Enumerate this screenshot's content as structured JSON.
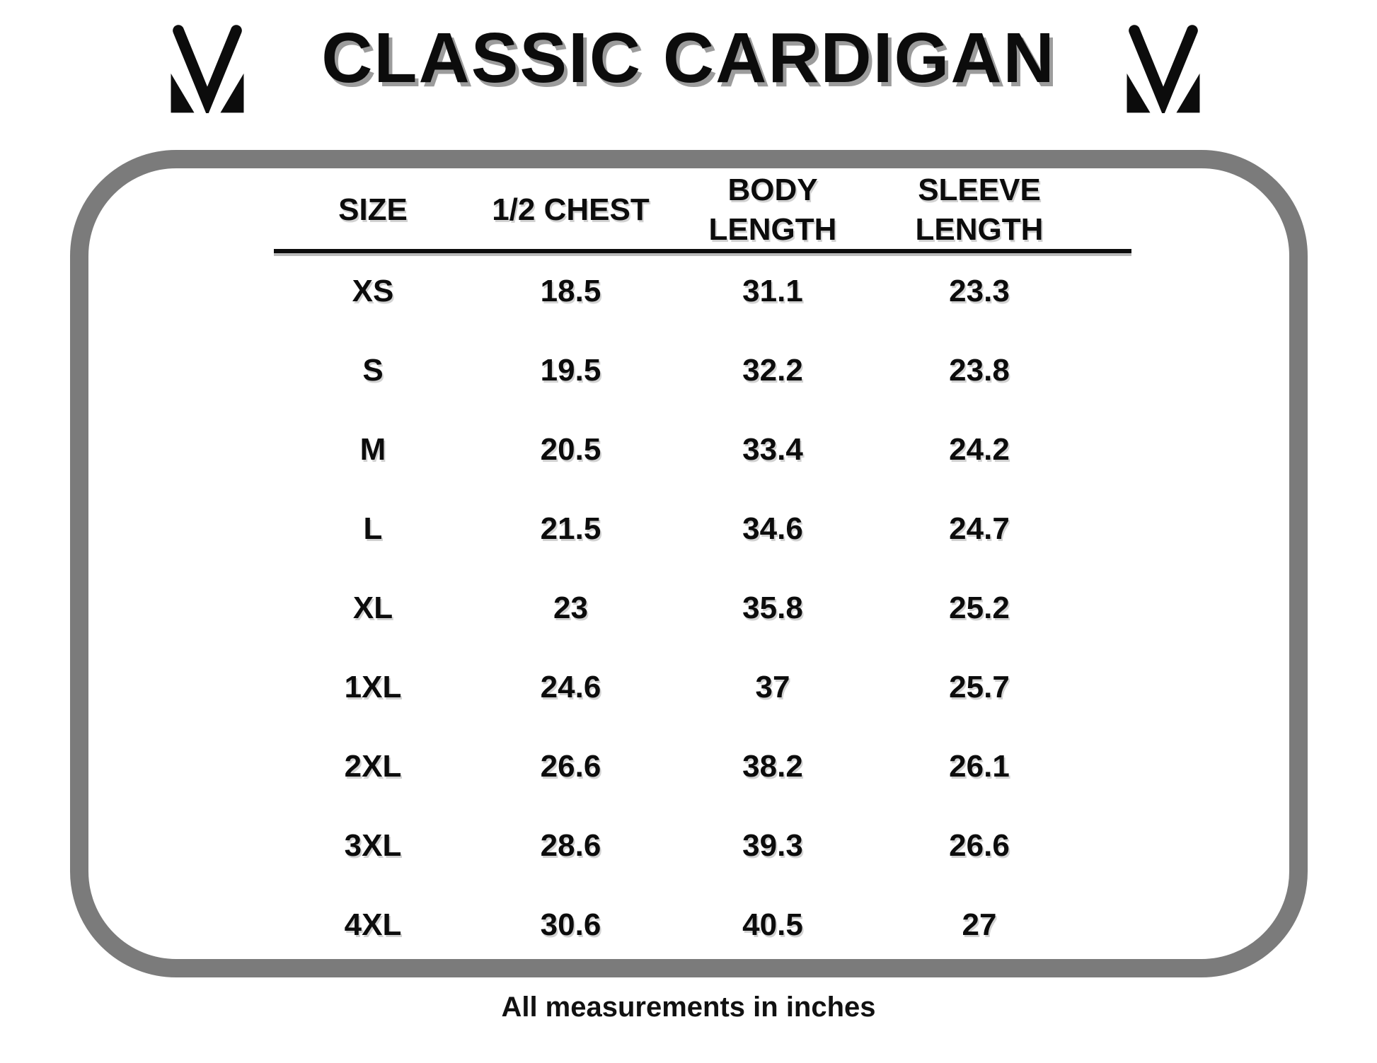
{
  "page": {
    "title": "CLASSIC CARDIGAN",
    "footer_note": "All measurements in inches"
  },
  "icons": {
    "brand_logo": "mv-monogram"
  },
  "colors": {
    "text": "#0c0c0c",
    "panel_border": "#7b7b7b",
    "title_shadow": "#9c9c9c",
    "table_text_shadow": "#d2d2d2"
  },
  "table": {
    "columns": [
      {
        "id": "size",
        "lines": [
          "SIZE"
        ]
      },
      {
        "id": "half-chest",
        "lines": [
          "1/2 CHEST"
        ]
      },
      {
        "id": "body-length",
        "lines": [
          "BODY",
          "LENGTH"
        ]
      },
      {
        "id": "sleeve-length",
        "lines": [
          "SLEEVE",
          "LENGTH"
        ]
      }
    ],
    "rows": [
      [
        "XS",
        "18.5",
        "31.1",
        "23.3"
      ],
      [
        "S",
        "19.5",
        "32.2",
        "23.8"
      ],
      [
        "M",
        "20.5",
        "33.4",
        "24.2"
      ],
      [
        "L",
        "21.5",
        "34.6",
        "24.7"
      ],
      [
        "XL",
        "23",
        "35.8",
        "25.2"
      ],
      [
        "1XL",
        "24.6",
        "37",
        "25.7"
      ],
      [
        "2XL",
        "26.6",
        "38.2",
        "26.1"
      ],
      [
        "3XL",
        "28.6",
        "39.3",
        "26.6"
      ],
      [
        "4XL",
        "30.6",
        "40.5",
        "27"
      ]
    ]
  }
}
